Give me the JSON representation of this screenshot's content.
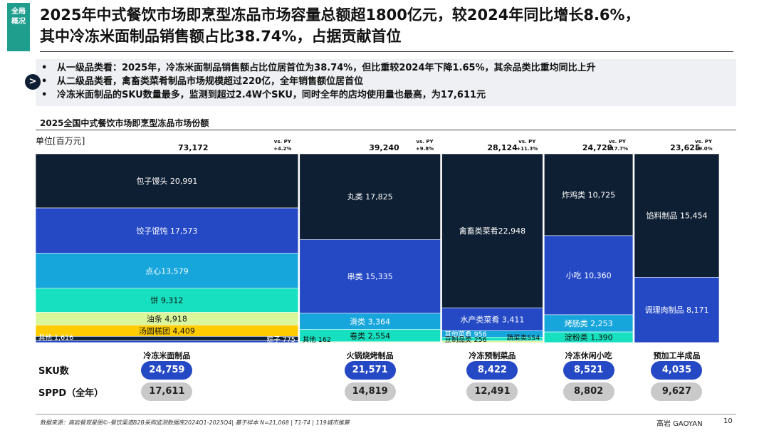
{
  "side_tag": [
    "全局",
    "概况"
  ],
  "title_line1": "2025年中式餐饮市场即烹型冻品市场容量总额超1800亿元，较2024年同比增长8.6%，",
  "title_line2": "其中冷冻米面制品销售额占比38.74%，占据贡献首位",
  "summary": [
    "从一级品类看：2025年，冷冻米面制品销售额占比位居首位为38.74%，但比重较2024年下降1.65%，其余品类比重均同比上升",
    "从二级品类看，禽畜类菜肴制品市场规模超过220亿，全年销售额位居首位",
    "冷冻米面制品的SKU数量最多，监测到超过2.4W个SKU，同时全年的店均使用量也最高，为17,611元"
  ],
  "arrow_glyph": ">",
  "chart_title": "2025全国中式餐饮市场即烹型冻品市场份额",
  "rows": {
    "sku": "SKU数",
    "sppd": "SPPD（全年）"
  },
  "footer": {
    "source": "数据来源：高岩餐观星图©-餐饮渠道B2B采购监测数据库2024Q1-2025Q4| 基于样本 N=21,068 | T1-T4 | 119城市推算",
    "brand": "高岩 GAOYAN",
    "page": "10"
  },
  "chart_data": {
    "type": "marimekko",
    "unit_label": "单位[百万元]",
    "vs_label": "vs. PY",
    "columns": [
      {
        "name": "冷冻米面制品",
        "total": 73172,
        "total_label": "73,172",
        "growth": "+4.2%",
        "sku": "24,759",
        "sppd": "17,611",
        "segments": [
          {
            "label": "包子馒头 20,991",
            "value": 20991,
            "color": "#0f1f33"
          },
          {
            "label": "饺子馄饨 17,573",
            "value": 17573,
            "color": "#2549c5"
          },
          {
            "label": "点心13,579",
            "value": 13579,
            "color": "#16a6dc"
          },
          {
            "label": "饼 9,312",
            "value": 9312,
            "color": "#17e0c0"
          },
          {
            "label": "油条 4,918",
            "value": 4918,
            "color": "#d9f79a"
          },
          {
            "label": "汤圆糕团 4,409",
            "value": 4409,
            "color": "#ffcc00"
          },
          {
            "label": "其他 1,616",
            "value": 1616,
            "color": "#0f1f33"
          },
          {
            "label": "粽子 775",
            "value": 775,
            "color": "#2549c5"
          }
        ]
      },
      {
        "name": "火锅烧烤制品",
        "total": 39240,
        "total_label": "39,240",
        "growth": "+9.8%",
        "sku": "21,571",
        "sppd": "14,819",
        "segments": [
          {
            "label": "丸类 17,825",
            "value": 17825,
            "color": "#0f1f33"
          },
          {
            "label": "串类 15,335",
            "value": 15335,
            "color": "#2549c5"
          },
          {
            "label": "滑类 3,364",
            "value": 3364,
            "color": "#16a6dc"
          },
          {
            "label": "卷类 2,554",
            "value": 2554,
            "color": "#17e0c0"
          },
          {
            "label": "其他 162",
            "value": 162,
            "color": "#d9f79a"
          }
        ]
      },
      {
        "name": "冷冻预制菜品",
        "total": 28124,
        "total_label": "28,124",
        "growth": "+11.3%",
        "sku": "8,422",
        "sppd": "12,491",
        "segments": [
          {
            "label": "禽畜类菜肴22,948",
            "value": 22948,
            "color": "#0f1f33"
          },
          {
            "label": "水产类菜肴 3,411",
            "value": 3411,
            "color": "#2549c5"
          },
          {
            "label": "其他菜肴 956",
            "value": 956,
            "color": "#16a6dc"
          },
          {
            "label": "蔬菜类554",
            "value": 554,
            "color": "#17e0c0"
          },
          {
            "label": "豆制品类 256",
            "value": 256,
            "color": "#d9f79a"
          }
        ]
      },
      {
        "name": "冷冻休闲小吃",
        "total": 24729,
        "total_label": "24,729",
        "growth": "+17.7%",
        "sku": "8,521",
        "sppd": "8,802",
        "segments": [
          {
            "label": "炸鸡类 10,725",
            "value": 10725,
            "color": "#0f1f33"
          },
          {
            "label": "小吃 10,360",
            "value": 10360,
            "color": "#2549c5"
          },
          {
            "label": "烤肠类 2,253",
            "value": 2253,
            "color": "#16a6dc"
          },
          {
            "label": "淀粉类 1,390",
            "value": 1390,
            "color": "#17e0c0"
          }
        ]
      },
      {
        "name": "预加工半成品",
        "total": 23625,
        "total_label": "23,625",
        "growth": "+9.0%",
        "sku": "4,035",
        "sppd": "9,627",
        "segments": [
          {
            "label": "馅料制品 15,454",
            "value": 15454,
            "color": "#0f1f33"
          },
          {
            "label": "调理肉制品 8,171",
            "value": 8171,
            "color": "#2549c5"
          }
        ]
      }
    ]
  }
}
